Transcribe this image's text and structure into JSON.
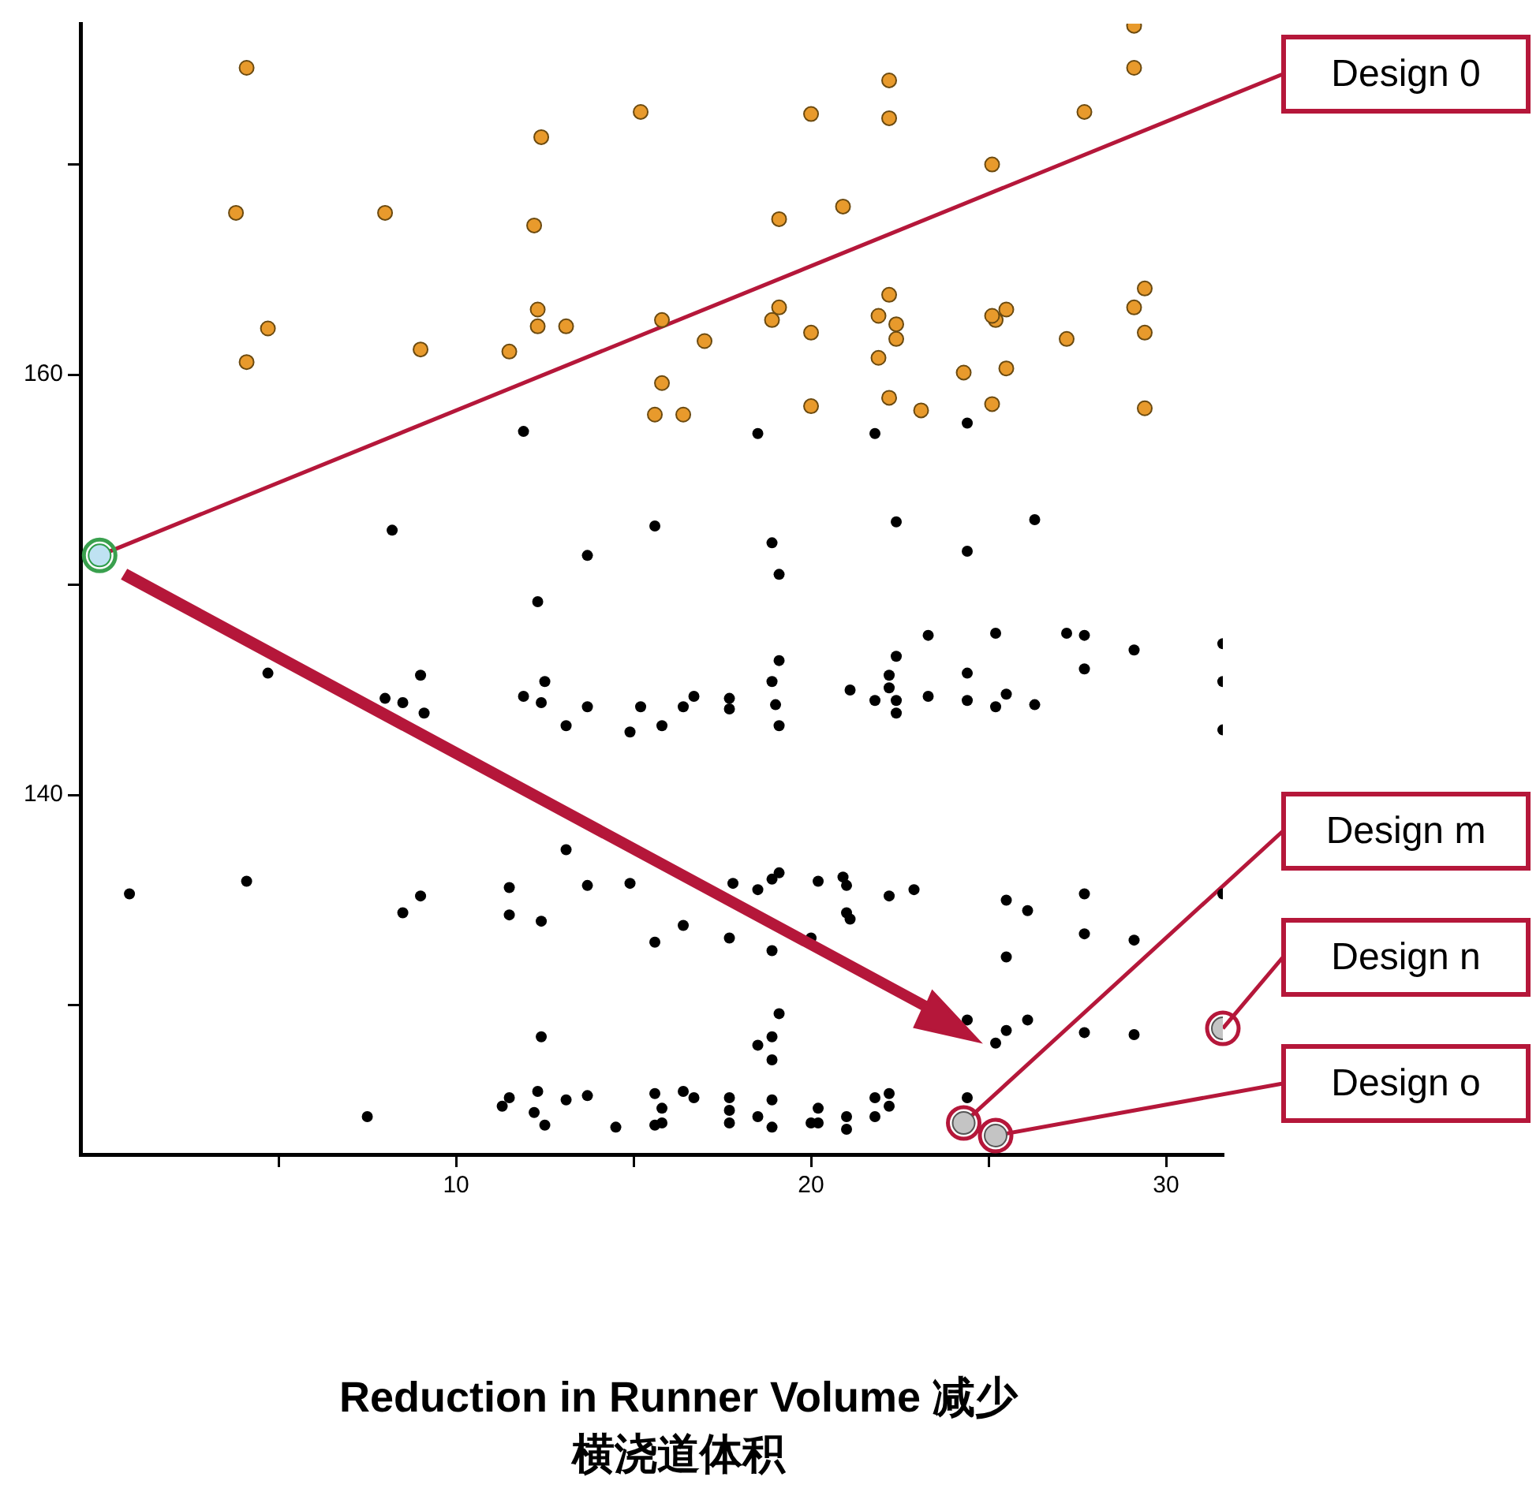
{
  "chart_data": {
    "type": "scatter",
    "xlabel": "Reduction in Runner Volume 减少横浇道体积",
    "xlim": [
      -0.58,
      31.6
    ],
    "xticks": [
      {
        "value": 5,
        "label": null
      },
      10,
      {
        "value": 15,
        "label": null
      },
      20,
      {
        "value": 25,
        "label": null
      },
      30
    ],
    "ylim": [
      122.9,
      176.7
    ],
    "yticks": [
      {
        "value": 130,
        "label": null
      },
      140,
      {
        "value": 150,
        "label": null
      },
      160,
      {
        "value": 170,
        "label": null
      }
    ],
    "grid": false,
    "legend": false,
    "marker": "circle",
    "series": [
      {
        "color": "#e89a2c",
        "x": [
          4.1,
          3.8,
          8.0,
          12.4,
          12.2,
          4.1,
          4.7,
          9.0,
          11.5,
          12.3,
          12.3,
          13.1,
          15.2,
          15.8,
          15.8,
          15.6,
          16.4,
          17.0,
          19.1,
          19.1,
          18.9,
          20.0,
          20.0,
          20.0,
          20.9,
          22.2,
          22.2,
          21.9,
          22.2,
          22.4,
          22.4,
          21.9,
          22.2,
          23.1,
          24.3,
          25.1,
          25.2,
          25.1,
          25.5,
          25.5,
          25.1,
          27.2,
          27.7,
          29.1,
          29.1,
          29.1,
          29.4,
          29.4,
          29.4
        ],
        "values": [
          174.6,
          167.7,
          167.7,
          171.3,
          167.1,
          160.6,
          162.2,
          161.2,
          161.1,
          163.1,
          162.3,
          162.3,
          172.5,
          162.6,
          159.6,
          158.1,
          158.1,
          161.6,
          167.4,
          163.2,
          162.6,
          172.4,
          162.0,
          158.5,
          168.0,
          174.0,
          172.2,
          162.8,
          163.8,
          162.4,
          161.7,
          160.8,
          158.9,
          158.3,
          160.1,
          170.0,
          162.6,
          162.8,
          163.1,
          160.3,
          158.6,
          161.7,
          172.5,
          176.6,
          174.6,
          163.2,
          164.1,
          162.0,
          158.4
        ]
      },
      {
        "color": "#000000",
        "x": [
          11.9,
          8.2,
          15.6,
          13.7,
          18.5,
          21.8,
          24.4,
          22.4,
          26.3,
          18.9,
          19.1,
          24.4,
          12.3,
          4.7,
          9.0,
          8.0,
          8.5,
          9.1,
          11.9,
          12.5,
          12.4,
          13.1,
          13.7,
          15.2,
          14.9,
          15.8,
          16.4,
          16.7,
          17.7,
          17.7,
          19.1,
          18.9,
          19.0,
          19.1,
          21.1,
          21.8,
          22.2,
          22.4,
          22.2,
          22.4,
          22.4,
          23.3,
          23.3,
          24.4,
          24.4,
          25.2,
          25.5,
          25.2,
          26.3,
          27.2,
          27.7,
          27.7,
          29.1,
          31.6,
          31.6,
          31.6,
          0.8,
          4.1,
          9.0,
          8.5,
          13.1,
          11.5,
          11.5,
          12.4,
          13.7,
          14.9,
          15.6,
          16.4,
          17.8,
          17.7,
          18.5,
          18.9,
          19.1,
          18.9,
          20.0,
          20.2,
          20.9,
          21.0,
          21.0,
          21.1,
          22.2,
          22.9,
          25.5,
          25.5,
          26.1,
          27.7,
          27.7,
          29.1,
          31.6,
          12.4,
          7.5,
          11.5,
          11.3,
          12.3,
          12.2,
          12.5,
          13.1,
          13.7,
          14.5,
          15.6,
          15.6,
          15.8,
          15.8,
          16.4,
          16.7,
          17.7,
          17.7,
          17.7,
          18.5,
          18.9,
          18.9,
          20.0,
          20.2,
          20.2,
          21.0,
          21.0,
          21.8,
          22.2,
          22.2,
          21.8,
          24.4,
          19.1,
          18.9,
          18.5,
          18.9,
          24.4,
          25.2,
          25.5,
          26.1,
          27.7,
          29.1
        ],
        "values": [
          157.3,
          152.6,
          152.8,
          151.4,
          157.2,
          157.2,
          157.7,
          153.0,
          153.1,
          152.0,
          150.5,
          151.6,
          149.2,
          145.8,
          145.7,
          144.6,
          144.4,
          143.9,
          144.7,
          145.4,
          144.4,
          143.3,
          144.2,
          144.2,
          143.0,
          143.3,
          144.2,
          144.7,
          144.6,
          144.1,
          146.4,
          145.4,
          144.3,
          143.3,
          145.0,
          144.5,
          145.7,
          146.6,
          145.1,
          144.5,
          143.9,
          147.6,
          144.7,
          145.8,
          144.5,
          147.7,
          144.8,
          144.2,
          144.3,
          147.7,
          147.6,
          146.0,
          146.9,
          147.2,
          145.4,
          143.1,
          135.3,
          135.9,
          135.2,
          134.4,
          137.4,
          135.6,
          134.3,
          134.0,
          135.7,
          135.8,
          133.0,
          133.8,
          135.8,
          133.2,
          135.5,
          136.0,
          136.3,
          132.6,
          133.2,
          135.9,
          136.1,
          135.7,
          134.4,
          134.1,
          135.2,
          135.5,
          135.0,
          132.3,
          134.5,
          135.3,
          133.4,
          133.1,
          135.3,
          128.5,
          124.7,
          125.6,
          125.2,
          125.9,
          124.9,
          124.3,
          125.5,
          125.7,
          124.2,
          125.8,
          124.3,
          125.1,
          124.4,
          125.9,
          125.6,
          125.6,
          125.0,
          124.4,
          124.7,
          125.5,
          124.2,
          124.4,
          125.1,
          124.4,
          124.7,
          124.1,
          125.6,
          125.8,
          125.2,
          124.7,
          125.6,
          129.6,
          128.5,
          128.1,
          127.4,
          129.3,
          128.2,
          128.8,
          129.3,
          128.7,
          128.6
        ]
      },
      {
        "color": "#bfe2f2",
        "x": [
          -0.04
        ],
        "values": [
          151.4
        ]
      },
      {
        "color": "#c4c4c4",
        "x": [
          24.3,
          31.6,
          25.2
        ],
        "values": [
          124.4,
          128.9,
          123.8
        ]
      }
    ],
    "annotations": [
      {
        "text": "Design 0",
        "x": -0.04,
        "y": 151.4
      },
      {
        "text": "Design m",
        "x": 24.3,
        "y": 124.4
      },
      {
        "text": "Design n",
        "x": 31.6,
        "y": 128.9
      },
      {
        "text": "Design o",
        "x": 25.2,
        "y": 123.8
      }
    ]
  }
}
